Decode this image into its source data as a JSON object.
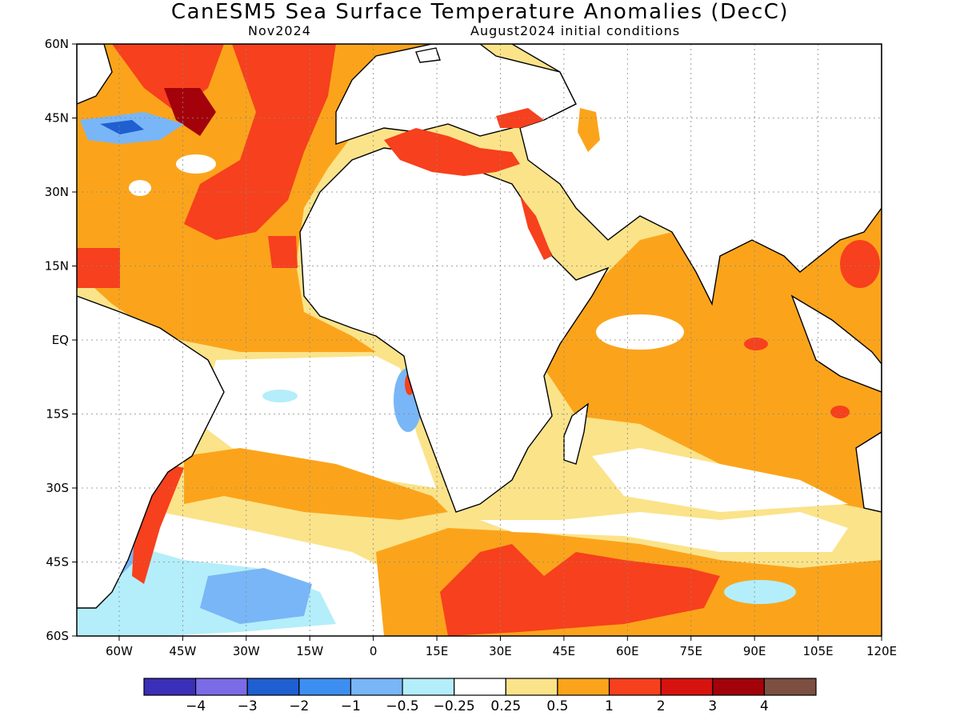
{
  "header": {
    "title": "CanESM5 Sea Surface Temperature Anomalies (DecC)",
    "month": "Nov2024",
    "init": "August2024 initial conditions"
  },
  "map": {
    "lon_range": [
      -70,
      120
    ],
    "lat_range": [
      -60,
      60
    ],
    "lat_ticks": [
      {
        "value": 60,
        "label": "60N"
      },
      {
        "value": 45,
        "label": "45N"
      },
      {
        "value": 30,
        "label": "30N"
      },
      {
        "value": 15,
        "label": "15N"
      },
      {
        "value": 0,
        "label": "EQ"
      },
      {
        "value": -15,
        "label": "15S"
      },
      {
        "value": -30,
        "label": "30S"
      },
      {
        "value": -45,
        "label": "45S"
      },
      {
        "value": -60,
        "label": "60S"
      }
    ],
    "lon_ticks": [
      {
        "value": -60,
        "label": "60W"
      },
      {
        "value": -45,
        "label": "45W"
      },
      {
        "value": -30,
        "label": "30W"
      },
      {
        "value": -15,
        "label": "15W"
      },
      {
        "value": 0,
        "label": "0"
      },
      {
        "value": 15,
        "label": "15E"
      },
      {
        "value": 30,
        "label": "30E"
      },
      {
        "value": 45,
        "label": "45E"
      },
      {
        "value": 60,
        "label": "60E"
      },
      {
        "value": 75,
        "label": "75E"
      },
      {
        "value": 90,
        "label": "90E"
      },
      {
        "value": 105,
        "label": "105E"
      },
      {
        "value": 120,
        "label": "120E"
      }
    ],
    "grid": true
  },
  "colorbar": {
    "colors": [
      "#3a2fb8",
      "#7b6be6",
      "#1f5fd1",
      "#3c8ff0",
      "#78b6f7",
      "#b4eefa",
      "#ffffff",
      "#fbe38a",
      "#fba41b",
      "#f7401d",
      "#d7130f",
      "#a3020a",
      "#7d4f40"
    ],
    "labels": [
      "−4",
      "−3",
      "−2",
      "−1",
      "−0.5",
      "−0.25",
      "0.25",
      "0.5",
      "1",
      "2",
      "3",
      "4"
    ]
  },
  "anomaly_colors": {
    "land": "#ffffff",
    "coast": "#000000"
  }
}
